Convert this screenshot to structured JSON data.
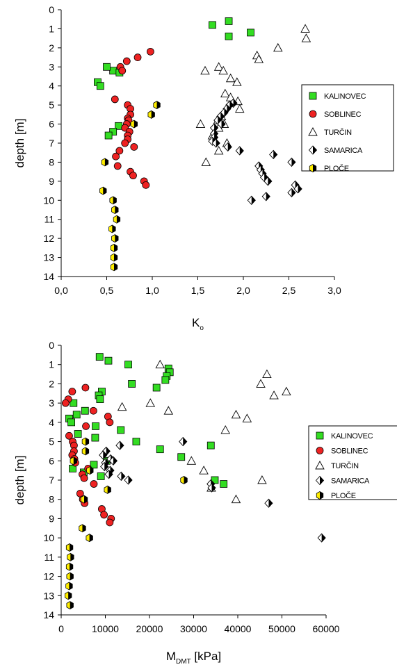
{
  "chart_data": [
    {
      "type": "scatter",
      "title": "",
      "xlabel": {
        "main": "K",
        "sub": "o"
      },
      "ylabel": "depth [m]",
      "xlim": [
        0,
        3
      ],
      "ylim": [
        0,
        14
      ],
      "y_inverted": true,
      "xticks": [
        0,
        0.5,
        1,
        1.5,
        2,
        2.5,
        3
      ],
      "xtick_labels": [
        "0,0",
        "0,5",
        "1,0",
        "1,5",
        "2,0",
        "2,5",
        "3,0"
      ],
      "yticks": [
        0,
        1,
        2,
        3,
        4,
        5,
        6,
        7,
        8,
        9,
        10,
        11,
        12,
        13,
        14
      ],
      "ytick_labels": [
        "0",
        "1",
        "2",
        "3",
        "4",
        "5",
        "6",
        "7",
        "8",
        "9",
        "10",
        "11",
        "12",
        "13",
        "14"
      ],
      "grid": false,
      "legend_position": "right",
      "series": [
        {
          "name": "KALINOVEC",
          "marker": "square",
          "color": "#33dd22",
          "points": [
            [
              1.66,
              0.8
            ],
            [
              1.84,
              0.6
            ],
            [
              1.84,
              1.4
            ],
            [
              2.08,
              1.2
            ],
            [
              0.57,
              3.2
            ],
            [
              0.5,
              3.0
            ],
            [
              0.64,
              3.3
            ],
            [
              0.4,
              3.8
            ],
            [
              0.43,
              4.0
            ],
            [
              0.63,
              6.1
            ],
            [
              0.57,
              6.4
            ],
            [
              0.52,
              6.6
            ]
          ]
        },
        {
          "name": "SOBLINEC",
          "marker": "circle",
          "color": "#ee2222",
          "points": [
            [
              0.98,
              2.2
            ],
            [
              0.84,
              2.5
            ],
            [
              0.72,
              2.7
            ],
            [
              0.65,
              3.0
            ],
            [
              0.67,
              3.2
            ],
            [
              0.59,
              4.7
            ],
            [
              0.73,
              5.0
            ],
            [
              0.76,
              5.2
            ],
            [
              0.76,
              5.5
            ],
            [
              0.73,
              5.7
            ],
            [
              0.74,
              5.8
            ],
            [
              0.72,
              6.0
            ],
            [
              0.7,
              6.2
            ],
            [
              0.75,
              6.4
            ],
            [
              0.73,
              6.6
            ],
            [
              0.73,
              6.8
            ],
            [
              0.7,
              7.0
            ],
            [
              0.8,
              7.2
            ],
            [
              0.64,
              7.4
            ],
            [
              0.6,
              7.7
            ],
            [
              0.62,
              8.2
            ],
            [
              0.76,
              8.5
            ],
            [
              0.79,
              8.7
            ],
            [
              0.91,
              9.0
            ],
            [
              0.93,
              9.2
            ]
          ]
        },
        {
          "name": "TURČIN",
          "marker": "triangle",
          "color": "#ffffff",
          "points": [
            [
              2.68,
              1.0
            ],
            [
              2.69,
              1.5
            ],
            [
              2.38,
              2.0
            ],
            [
              2.15,
              2.4
            ],
            [
              2.17,
              2.6
            ],
            [
              1.73,
              3.0
            ],
            [
              1.78,
              3.2
            ],
            [
              1.58,
              3.2
            ],
            [
              1.86,
              3.6
            ],
            [
              1.93,
              3.8
            ],
            [
              1.8,
              4.4
            ],
            [
              1.86,
              4.6
            ],
            [
              1.94,
              4.8
            ],
            [
              1.96,
              5.2
            ],
            [
              1.76,
              5.6
            ],
            [
              1.72,
              5.8
            ],
            [
              1.53,
              6.0
            ],
            [
              1.79,
              6.0
            ],
            [
              1.73,
              6.2
            ],
            [
              1.66,
              6.6
            ],
            [
              1.82,
              7.0
            ],
            [
              1.73,
              7.4
            ],
            [
              1.59,
              8.0
            ]
          ]
        },
        {
          "name": "SAMARICA",
          "marker": "diamond",
          "color": "#000000",
          "points": [
            [
              1.89,
              4.9
            ],
            [
              1.85,
              5.0
            ],
            [
              1.82,
              5.2
            ],
            [
              1.79,
              5.4
            ],
            [
              1.75,
              5.6
            ],
            [
              1.72,
              5.8
            ],
            [
              1.76,
              6.0
            ],
            [
              1.68,
              6.2
            ],
            [
              1.68,
              6.5
            ],
            [
              1.68,
              6.7
            ],
            [
              1.66,
              6.9
            ],
            [
              1.7,
              7.0
            ],
            [
              1.83,
              7.2
            ],
            [
              1.96,
              7.4
            ],
            [
              2.33,
              7.6
            ],
            [
              2.53,
              8.0
            ],
            [
              2.17,
              8.2
            ],
            [
              2.19,
              8.4
            ],
            [
              2.21,
              8.6
            ],
            [
              2.23,
              8.8
            ],
            [
              2.27,
              9.0
            ],
            [
              2.57,
              9.2
            ],
            [
              2.6,
              9.4
            ],
            [
              2.53,
              9.6
            ],
            [
              2.25,
              9.8
            ],
            [
              2.09,
              10.0
            ]
          ]
        },
        {
          "name": "PLOČE",
          "marker": "hexagon",
          "color": "#ffee00",
          "points": [
            [
              1.05,
              5.0
            ],
            [
              0.99,
              5.5
            ],
            [
              0.8,
              6.0
            ],
            [
              0.48,
              8.0
            ],
            [
              0.46,
              9.5
            ],
            [
              0.57,
              10.0
            ],
            [
              0.59,
              10.5
            ],
            [
              0.61,
              11.0
            ],
            [
              0.56,
              11.5
            ],
            [
              0.59,
              12.0
            ],
            [
              0.58,
              12.5
            ],
            [
              0.58,
              13.0
            ],
            [
              0.58,
              13.5
            ]
          ]
        }
      ]
    },
    {
      "type": "scatter",
      "title": "",
      "xlabel": {
        "main": "M",
        "sub": "DMT",
        "unit": " [kPa]"
      },
      "ylabel": "depth [m]",
      "xlim": [
        0,
        60000
      ],
      "ylim": [
        0,
        14
      ],
      "y_inverted": true,
      "xticks": [
        0,
        10000,
        20000,
        30000,
        40000,
        50000,
        60000
      ],
      "xtick_labels": [
        "0",
        "10000",
        "20000",
        "30000",
        "40000",
        "50000",
        "60000"
      ],
      "yticks": [
        0,
        1,
        2,
        3,
        4,
        5,
        6,
        7,
        8,
        9,
        10,
        11,
        12,
        13,
        14
      ],
      "ytick_labels": [
        "0",
        "1",
        "2",
        "3",
        "4",
        "5",
        "6",
        "7",
        "8",
        "9",
        "10",
        "11",
        "12",
        "13",
        "14"
      ],
      "grid": false,
      "legend_position": "right",
      "series": [
        {
          "name": "KALINOVEC",
          "marker": "square",
          "color": "#33dd22",
          "points": [
            [
              8700,
              0.6
            ],
            [
              10700,
              0.8
            ],
            [
              15200,
              1.0
            ],
            [
              24300,
              1.2
            ],
            [
              24600,
              1.4
            ],
            [
              23900,
              1.6
            ],
            [
              23600,
              1.8
            ],
            [
              16000,
              2.0
            ],
            [
              21600,
              2.2
            ],
            [
              9200,
              2.4
            ],
            [
              8500,
              2.6
            ],
            [
              8800,
              2.8
            ],
            [
              5400,
              3.4
            ],
            [
              3500,
              3.6
            ],
            [
              1800,
              3.8
            ],
            [
              2300,
              4.0
            ],
            [
              13500,
              4.4
            ],
            [
              3800,
              4.6
            ],
            [
              7700,
              4.8
            ],
            [
              17000,
              5.0
            ],
            [
              33900,
              5.2
            ],
            [
              22400,
              5.4
            ],
            [
              27200,
              5.8
            ],
            [
              10300,
              6.0
            ],
            [
              7400,
              6.2
            ],
            [
              2600,
              6.4
            ],
            [
              5100,
              6.6
            ],
            [
              9000,
              6.8
            ],
            [
              34800,
              7.0
            ],
            [
              36800,
              7.2
            ],
            [
              2800,
              3.0
            ],
            [
              7800,
              4.2
            ]
          ]
        },
        {
          "name": "SOBLINEC",
          "marker": "circle",
          "color": "#ee2222",
          "points": [
            [
              5500,
              2.2
            ],
            [
              2500,
              2.4
            ],
            [
              1600,
              2.8
            ],
            [
              1000,
              3.0
            ],
            [
              7300,
              3.4
            ],
            [
              10600,
              3.7
            ],
            [
              11000,
              4.0
            ],
            [
              5600,
              4.2
            ],
            [
              1800,
              4.7
            ],
            [
              2600,
              5.0
            ],
            [
              2900,
              5.2
            ],
            [
              2900,
              5.5
            ],
            [
              2500,
              5.7
            ],
            [
              3000,
              5.9
            ],
            [
              3200,
              6.1
            ],
            [
              6100,
              6.4
            ],
            [
              4800,
              6.7
            ],
            [
              5200,
              6.9
            ],
            [
              7400,
              7.2
            ],
            [
              4300,
              7.7
            ],
            [
              4900,
              8.0
            ],
            [
              5300,
              8.2
            ],
            [
              9200,
              8.5
            ],
            [
              9700,
              8.8
            ],
            [
              11300,
              9.0
            ],
            [
              11000,
              9.2
            ]
          ]
        },
        {
          "name": "TURČIN",
          "marker": "triangle",
          "color": "#ffffff",
          "points": [
            [
              22400,
              1.0
            ],
            [
              46600,
              1.5
            ],
            [
              45200,
              2.0
            ],
            [
              51000,
              2.4
            ],
            [
              48200,
              2.6
            ],
            [
              20200,
              3.0
            ],
            [
              13800,
              3.2
            ],
            [
              24300,
              3.4
            ],
            [
              39600,
              3.6
            ],
            [
              42100,
              3.8
            ],
            [
              37200,
              4.4
            ],
            [
              29500,
              6.0
            ],
            [
              32300,
              6.5
            ],
            [
              45500,
              7.0
            ],
            [
              34000,
              7.4
            ],
            [
              39600,
              8.0
            ]
          ]
        },
        {
          "name": "SAMARICA",
          "marker": "diamond",
          "color": "#000000",
          "points": [
            [
              27600,
              5.0
            ],
            [
              13300,
              5.2
            ],
            [
              10200,
              5.5
            ],
            [
              9500,
              5.7
            ],
            [
              11200,
              5.9
            ],
            [
              11800,
              6.0
            ],
            [
              10000,
              6.1
            ],
            [
              9800,
              6.3
            ],
            [
              11100,
              6.5
            ],
            [
              10800,
              6.7
            ],
            [
              13600,
              6.8
            ],
            [
              15200,
              7.0
            ],
            [
              33900,
              7.2
            ],
            [
              34100,
              7.4
            ],
            [
              47000,
              8.2
            ],
            [
              59000,
              10.0
            ]
          ]
        },
        {
          "name": "PLOČE",
          "marker": "hexagon",
          "color": "#ffee00",
          "points": [
            [
              5500,
              5.0
            ],
            [
              5500,
              5.5
            ],
            [
              2800,
              6.0
            ],
            [
              6500,
              6.5
            ],
            [
              27800,
              7.0
            ],
            [
              10500,
              7.5
            ],
            [
              5200,
              8.0
            ],
            [
              4800,
              9.5
            ],
            [
              6400,
              10.0
            ],
            [
              1900,
              10.5
            ],
            [
              2100,
              11.0
            ],
            [
              1900,
              11.5
            ],
            [
              2000,
              12.0
            ],
            [
              1800,
              12.5
            ],
            [
              1600,
              13.0
            ],
            [
              2000,
              13.5
            ]
          ]
        }
      ]
    }
  ]
}
